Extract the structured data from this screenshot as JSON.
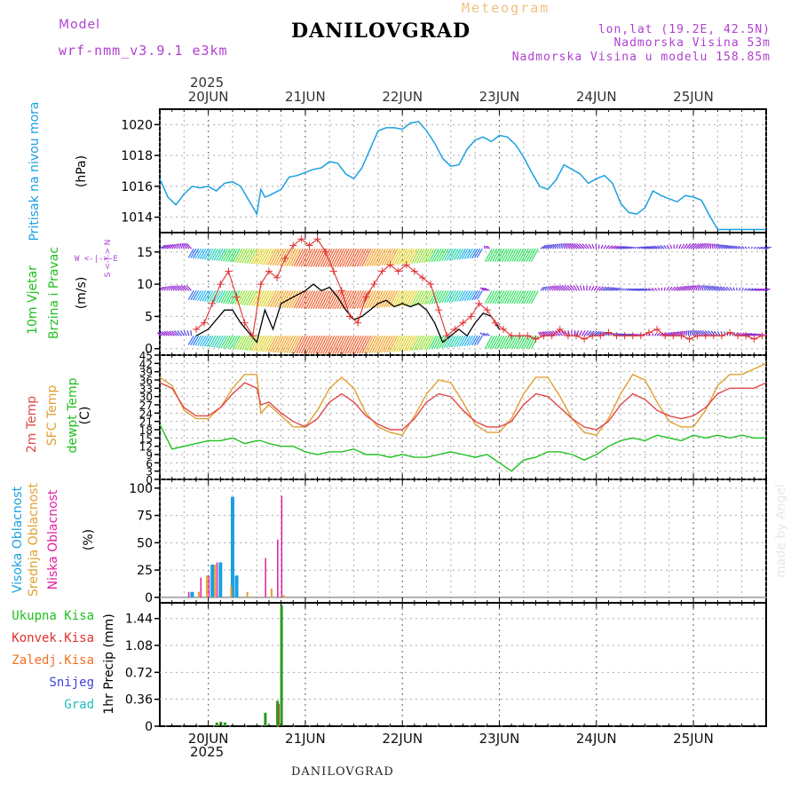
{
  "header": {
    "model_label": "Model",
    "model_name": "wrf-nmm_v3.9.1  e3km",
    "title": "DANILOVGRAD",
    "subtitle": "Meteogram",
    "lonlat": "lon,lat (19.2E, 42.5N)",
    "elevation": "Nadmorska Visina 53m",
    "model_elevation": "Nadmorska Visina u modelu 158.85m",
    "bottom_title": "DANILOVGRAD",
    "watermark": "made by Angel"
  },
  "panel_labels": {
    "pressure": "Pritisak na nivou mora",
    "pressure_unit": "(hPa)",
    "wind_1": "10m Vjetar",
    "wind_2": "Brzina i Pravac",
    "wind_unit": "(m/s)",
    "compass": "W <-|-> E",
    "compass_2": "S <-|-> N",
    "temp_1": "2m Temp",
    "temp_2": "SFC Temp",
    "temp_3": "dewpt Temp",
    "temp_unit": "(C)",
    "cloud_1": "Visoka Oblacnost",
    "cloud_2": "Srednja Oblacnost",
    "cloud_3": "Niska Oblacnost",
    "cloud_unit": "(%)",
    "precip_1": "Ukupna Kisa",
    "precip_2": "Konvek.Kisa",
    "precip_3": "Zaledj.Kisa",
    "precip_4": "Snijeg",
    "precip_5": "Grad",
    "precip_unit": "1hr Precip (mm)"
  },
  "colors": {
    "pressure": "#1aa0e0",
    "t2m": "#e04848",
    "tsfc": "#e0a030",
    "dewpt": "#20c020",
    "high_cloud": "#1aa0e0",
    "mid_cloud": "#e0a030",
    "low_cloud": "#e020a0",
    "total_rain": "#2a9a20",
    "conv_rain": "#e03030",
    "freezing_rain": "#f07020",
    "snow": "#4040e0",
    "hail": "#20c0c0",
    "wind_line": "#000000",
    "wind_gust": "#e03030"
  },
  "chart_data": {
    "type": "meteogram",
    "x_unit": "hours since 2025-06-19 12 UTC",
    "x_range": [
      0,
      150
    ],
    "year_label": "2025",
    "day_labels": [
      "20JUN",
      "21JUN",
      "22JUN",
      "23JUN",
      "24JUN",
      "25JUN"
    ],
    "day_positions": [
      12,
      36,
      60,
      84,
      108,
      132
    ],
    "pressure": {
      "ylabel": "(hPa)",
      "ylim": [
        1013,
        1021
      ],
      "yticks": [
        1014,
        1016,
        1018,
        1020
      ],
      "x": [
        0,
        2,
        4,
        6,
        8,
        10,
        12,
        14,
        16,
        18,
        20,
        22,
        24,
        25,
        26,
        27,
        30,
        32,
        34,
        36,
        38,
        40,
        42,
        44,
        46,
        48,
        50,
        52,
        54,
        56,
        58,
        60,
        62,
        64,
        66,
        68,
        70,
        72,
        74,
        76,
        78,
        80,
        82,
        84,
        86,
        88,
        90,
        92,
        94,
        96,
        98,
        100,
        102,
        104,
        106,
        108,
        110,
        112,
        114,
        116,
        118,
        120,
        122,
        124,
        126,
        128,
        130,
        132,
        134,
        136,
        138,
        140,
        142,
        144,
        146,
        148,
        150
      ],
      "values": [
        1016.5,
        1015.3,
        1014.8,
        1015.5,
        1016.0,
        1015.9,
        1016.0,
        1015.7,
        1016.2,
        1016.3,
        1016.0,
        1015.1,
        1014.2,
        1015.8,
        1015.3,
        1015.4,
        1015.8,
        1016.6,
        1016.7,
        1016.9,
        1017.1,
        1017.2,
        1017.6,
        1017.5,
        1016.8,
        1016.5,
        1017.2,
        1018.4,
        1019.6,
        1019.8,
        1019.8,
        1019.7,
        1020.1,
        1020.2,
        1019.6,
        1018.8,
        1017.8,
        1017.3,
        1017.4,
        1018.4,
        1019.0,
        1019.2,
        1018.9,
        1019.3,
        1019.2,
        1018.7,
        1017.9,
        1016.9,
        1016.0,
        1015.8,
        1016.4,
        1017.4,
        1017.1,
        1016.8,
        1016.2,
        1016.5,
        1016.7,
        1016.2,
        1014.9,
        1014.3,
        1014.2,
        1014.6,
        1015.7,
        1015.4,
        1015.2,
        1015.0,
        1015.4,
        1015.3,
        1015.1,
        1014.1,
        1013.2,
        1013.2,
        1013.2,
        1013.2,
        1013.2,
        1013.2,
        1013.2
      ]
    },
    "wind": {
      "ylabel": "(m/s)",
      "ylim": [
        -1,
        18
      ],
      "yticks": [
        0,
        5,
        10,
        15
      ],
      "speed_x": [
        9,
        12,
        14,
        16,
        18,
        20,
        22,
        24,
        26,
        28,
        30,
        33,
        36,
        38,
        40,
        42,
        44,
        46,
        48,
        50,
        52,
        54,
        56,
        58,
        60,
        62,
        64,
        66,
        68,
        70,
        72,
        74,
        76,
        78,
        80,
        82,
        84
      ],
      "speed": [
        2,
        3,
        4.5,
        6,
        6,
        4,
        2.5,
        1,
        6,
        3,
        7,
        8,
        9,
        10,
        9,
        9.5,
        8,
        6,
        4.5,
        5,
        6,
        7,
        7.5,
        6.5,
        7,
        6.5,
        7,
        6,
        4,
        1,
        2,
        3,
        2,
        4,
        5.5,
        5,
        3
      ],
      "gust_x": [
        9,
        11,
        13,
        15,
        17,
        19,
        21,
        23,
        25,
        27,
        29,
        31,
        33,
        35,
        37,
        39,
        41,
        43,
        45,
        47,
        49,
        51,
        53,
        55,
        57,
        59,
        61,
        63,
        65,
        67,
        69,
        71,
        73,
        75,
        77,
        79,
        81,
        83,
        85,
        87,
        89,
        91,
        93,
        95,
        97,
        99,
        101,
        103,
        105,
        107,
        109,
        111,
        113,
        115,
        117,
        119,
        121,
        123,
        125,
        127,
        129,
        131,
        133,
        135,
        137,
        139,
        141,
        143,
        145,
        147,
        149
      ],
      "gust": [
        3,
        4,
        7,
        10,
        12,
        8,
        4,
        2,
        10,
        12,
        11,
        14,
        16,
        17,
        16,
        17,
        15,
        12,
        9,
        5,
        4,
        8,
        10,
        12,
        13,
        12,
        13,
        12,
        11,
        10,
        6,
        2,
        3,
        4,
        5,
        7,
        6,
        4,
        3,
        2,
        2,
        2,
        1.5,
        2,
        2,
        3,
        2,
        2,
        1.5,
        2,
        2,
        2.5,
        2,
        2,
        2,
        2,
        2.5,
        3,
        2,
        2,
        2,
        1.5,
        2,
        2,
        2,
        2,
        2.5,
        2,
        2,
        1.5,
        2
      ],
      "barbs": [
        {
          "y": 15.5,
          "x_start": 0,
          "x_end": 150,
          "color_mode": "blue-purple"
        },
        {
          "y": 9,
          "x_start": 0,
          "x_end": 150,
          "color_mode": "blue-purple"
        },
        {
          "y": 2,
          "x_start": 0,
          "x_end": 150,
          "color_mode": "blue-purple"
        }
      ]
    },
    "temperature": {
      "ylabel": "(C)",
      "ylim": [
        0,
        45
      ],
      "yticks": [
        0,
        3,
        6,
        9,
        12,
        15,
        18,
        21,
        24,
        27,
        30,
        33,
        36,
        39,
        42,
        45
      ],
      "x": [
        0,
        3,
        6,
        9,
        12,
        15,
        18,
        21,
        24,
        25,
        27,
        30,
        33,
        36,
        39,
        42,
        45,
        48,
        51,
        54,
        57,
        60,
        63,
        66,
        69,
        72,
        75,
        78,
        81,
        84,
        87,
        90,
        93,
        96,
        99,
        102,
        105,
        108,
        111,
        114,
        117,
        120,
        123,
        126,
        129,
        132,
        135,
        138,
        141,
        144,
        147,
        150
      ],
      "t2m": [
        35,
        33,
        26,
        23,
        23,
        26,
        31,
        35,
        33,
        27,
        28,
        24,
        21,
        19,
        22,
        28,
        31,
        28,
        23,
        20,
        18,
        18,
        22,
        28,
        31,
        30,
        25,
        21,
        19,
        19,
        21,
        27,
        31,
        30,
        26,
        22,
        19,
        18,
        21,
        27,
        31,
        29,
        25,
        23,
        22,
        23,
        26,
        31,
        33,
        33,
        33,
        35
      ],
      "tsfc": [
        37,
        34,
        25,
        22,
        22,
        26,
        33,
        38,
        38,
        24,
        27,
        23,
        19,
        19,
        25,
        33,
        37,
        33,
        24,
        19,
        17,
        16,
        23,
        31,
        36,
        35,
        28,
        20,
        17,
        17,
        22,
        31,
        37,
        37,
        30,
        22,
        17,
        16,
        22,
        31,
        38,
        36,
        28,
        21,
        19,
        19,
        25,
        34,
        38,
        38,
        40,
        42
      ],
      "dewpt": [
        20,
        11,
        12,
        13,
        14,
        14,
        15,
        13,
        14,
        14,
        13,
        12,
        12,
        10,
        9,
        10,
        10,
        11,
        9,
        9,
        8,
        9,
        8,
        8,
        9,
        10,
        9,
        8,
        9,
        6,
        3,
        7,
        8,
        10,
        10,
        9,
        7,
        9,
        12,
        14,
        15,
        14,
        16,
        15,
        14,
        16,
        15,
        16,
        15,
        16,
        15,
        15
      ]
    },
    "clouds": {
      "ylabel": "(%)",
      "ylim": [
        0,
        100
      ],
      "yticks": [
        0,
        25,
        50,
        75,
        100
      ],
      "high": [
        {
          "x": 8,
          "v": 5
        },
        {
          "x": 13,
          "v": 30
        },
        {
          "x": 15,
          "v": 32
        },
        {
          "x": 18,
          "v": 92
        },
        {
          "x": 19,
          "v": 20
        }
      ],
      "mid": [
        {
          "x": 9,
          "v": 5
        },
        {
          "x": 11,
          "v": 20
        },
        {
          "x": 13,
          "v": 30
        },
        {
          "x": 17,
          "v": 10
        },
        {
          "x": 21,
          "v": 5
        },
        {
          "x": 27,
          "v": 8
        },
        {
          "x": 30,
          "v": 2
        }
      ],
      "low": [
        {
          "x": 7,
          "v": 5
        },
        {
          "x": 10,
          "v": 18
        },
        {
          "x": 12,
          "v": 20
        },
        {
          "x": 14,
          "v": 32
        },
        {
          "x": 26,
          "v": 36
        },
        {
          "x": 29,
          "v": 53
        },
        {
          "x": 30,
          "v": 93
        }
      ]
    },
    "precip": {
      "ylabel": "1hr Precip (mm)",
      "ylim": [
        0,
        1.6
      ],
      "yticks": [
        0,
        0.36,
        0.72,
        1.08,
        1.44
      ],
      "total": [
        {
          "x": 14,
          "v": 0.05
        },
        {
          "x": 15,
          "v": 0.06
        },
        {
          "x": 16,
          "v": 0.05
        },
        {
          "x": 26,
          "v": 0.18
        },
        {
          "x": 29,
          "v": 0.34
        },
        {
          "x": 30,
          "v": 1.62
        }
      ],
      "convective": [
        {
          "x": 14,
          "v": 0.02
        },
        {
          "x": 29,
          "v": 0.3
        }
      ]
    }
  }
}
